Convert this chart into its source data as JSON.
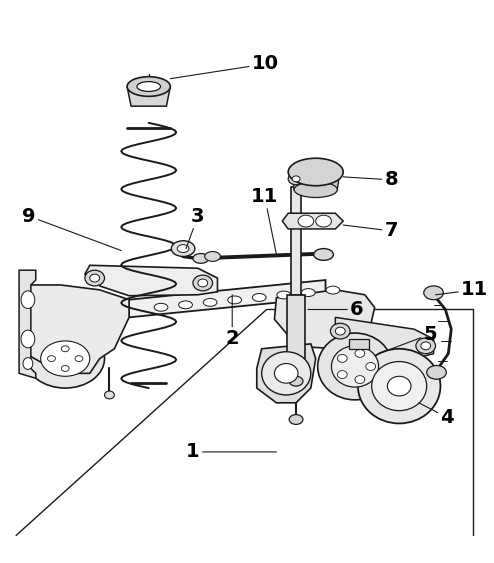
{
  "background_color": "#ffffff",
  "line_color": "#1a1a1a",
  "label_color": "#000000",
  "fig_width": 4.94,
  "fig_height": 5.63,
  "dpi": 100
}
